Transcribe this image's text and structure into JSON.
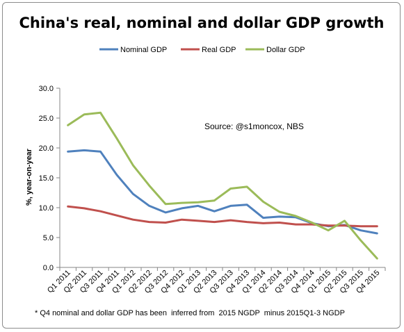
{
  "chart_data": {
    "type": "line",
    "title": "China's real, nominal and dollar GDP growth",
    "ylabel": "%, year-on-year",
    "xlabel": "",
    "ylim": [
      0,
      30
    ],
    "yticks": [
      "0.0",
      "5.0",
      "10.0",
      "15.0",
      "20.0",
      "25.0",
      "30.0"
    ],
    "grid": false,
    "legend_position": "top",
    "categories": [
      "Q1 2011",
      "Q2 2011",
      "Q3 2011",
      "Q4 2011",
      "Q1 2012",
      "Q2 2012",
      "Q3 2012",
      "Q4 2012",
      "Q1 2013",
      "Q2 2013",
      "Q3 2013",
      "Q4 2013",
      "Q1 2014",
      "Q2 2014",
      "Q3 2014",
      "Q4 2014",
      "Q1 2015",
      "Q2 2015",
      "Q3 2015",
      "Q4 2015"
    ],
    "series": [
      {
        "name": "Nominal GDP",
        "color": "#4f81bd",
        "values": [
          19.4,
          19.6,
          19.4,
          15.5,
          12.3,
          10.3,
          9.2,
          9.9,
          10.3,
          9.4,
          10.3,
          10.5,
          8.3,
          8.5,
          8.4,
          7.4,
          6.9,
          7.1,
          6.2,
          5.7
        ]
      },
      {
        "name": "Real GDP",
        "color": "#c0504d",
        "values": [
          10.2,
          9.9,
          9.4,
          8.7,
          8.0,
          7.6,
          7.5,
          8.0,
          7.8,
          7.6,
          7.9,
          7.6,
          7.4,
          7.5,
          7.2,
          7.2,
          7.0,
          7.0,
          6.9,
          6.9
        ]
      },
      {
        "name": "Dollar GDP",
        "color": "#9bbb59",
        "values": [
          23.8,
          25.6,
          25.9,
          21.6,
          17.1,
          13.7,
          10.6,
          10.8,
          10.9,
          11.2,
          13.2,
          13.5,
          11.0,
          9.3,
          8.6,
          7.5,
          6.2,
          7.8,
          4.5,
          1.5
        ]
      }
    ],
    "annotations": [
      "Source: @s1moncox, NBS",
      "* Q4 nominal and dollar GDP has been  inferred from  2015 NGDP  minus 2015Q1-3 NGDP"
    ]
  }
}
